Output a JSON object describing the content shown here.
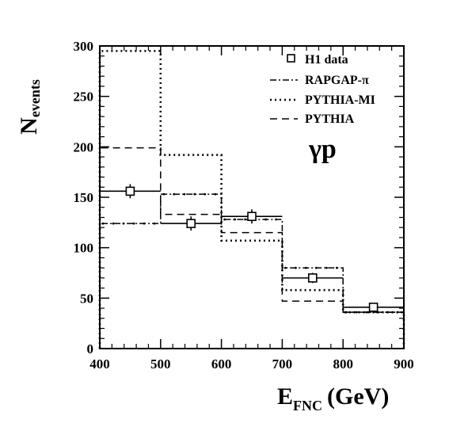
{
  "chart_data": {
    "type": "step",
    "xlabel": {
      "main": "E",
      "sub": "FNC",
      "unit": "(GeV)"
    },
    "ylabel": {
      "main": "N",
      "sub": "events"
    },
    "xlim": [
      400,
      900
    ],
    "ylim": [
      0,
      300
    ],
    "x_ticks": [
      "400",
      "500",
      "600",
      "700",
      "800",
      "900"
    ],
    "y_ticks": [
      "0",
      "50",
      "100",
      "150",
      "200",
      "250",
      "300"
    ],
    "annotation": "γp",
    "legend_position": "top-right",
    "bin_edges": [
      400,
      500,
      600,
      700,
      800,
      900
    ],
    "data": {
      "name": "H1 data",
      "x": [
        450,
        550,
        650,
        750,
        850
      ],
      "y": [
        156,
        124,
        131,
        70,
        41
      ],
      "yerr": [
        7,
        7,
        7,
        5,
        3
      ]
    },
    "series": [
      {
        "name": "RAPGAP-π",
        "values": [
          124,
          153,
          128,
          80,
          36
        ],
        "style": "dash-dot"
      },
      {
        "name": "PYTHIA-MI",
        "values": [
          295,
          192,
          107,
          58,
          36
        ],
        "style": "dotted"
      },
      {
        "name": "PYTHIA",
        "values": [
          199,
          133,
          115,
          47,
          36
        ],
        "style": "dashed"
      }
    ],
    "grid": false
  }
}
